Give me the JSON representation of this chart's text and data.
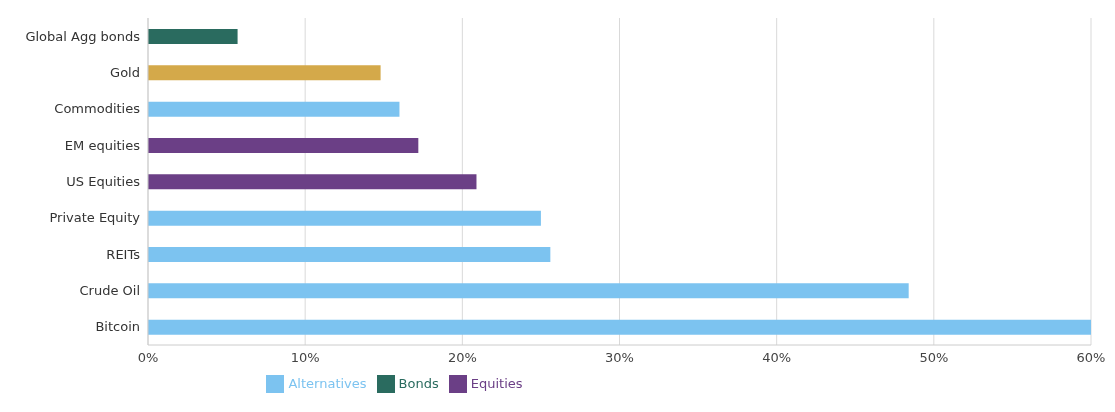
{
  "chart_data": {
    "type": "bar",
    "orientation": "horizontal",
    "stacked": true,
    "categories": [
      "Global Agg bonds",
      "Gold",
      "Commodities",
      "EM equities",
      "US Equities",
      "Private Equity",
      "REITs",
      "Crude Oil",
      "Bitcoin"
    ],
    "series": [
      {
        "name": "Equities",
        "color": "#6b3f86",
        "values": [
          null,
          null,
          null,
          17.2,
          20.9,
          null,
          null,
          null,
          null
        ]
      },
      {
        "name": "Alternatives",
        "color": "#7cc3f0",
        "values": [
          null,
          null,
          16.0,
          null,
          null,
          25.0,
          25.6,
          48.4,
          60
        ]
      },
      {
        "name": "Bonds",
        "color": "#2a6b5f",
        "values": [
          5.7,
          null,
          null,
          null,
          null,
          null,
          null,
          null,
          null
        ]
      },
      {
        "color": "#d4a94a",
        "values": [
          null,
          14.8,
          null,
          null,
          null,
          null,
          null,
          null,
          null
        ]
      }
    ],
    "xlim": [
      0,
      60
    ],
    "xticks": [
      {
        "value": 0,
        "label": "0%"
      },
      {
        "value": 10,
        "label": "10%"
      },
      {
        "value": 20,
        "label": "20%"
      },
      {
        "value": 30,
        "label": "30%"
      },
      {
        "value": 40,
        "label": "40%"
      },
      {
        "value": 50,
        "label": "50%"
      },
      {
        "value": 60,
        "label": "60%"
      }
    ],
    "grid": "x",
    "legend": "bottom"
  }
}
